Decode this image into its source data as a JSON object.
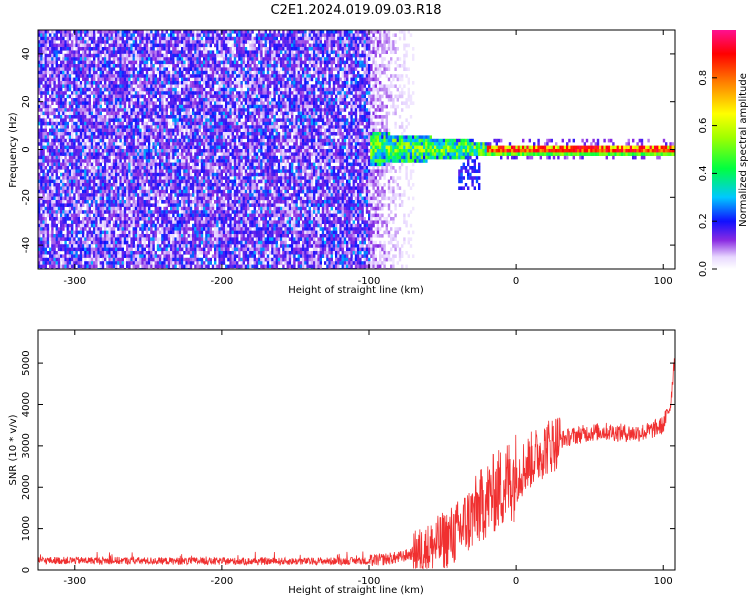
{
  "title": "C2E1.2024.019.09.03.R18",
  "chart_data": [
    {
      "type": "heatmap",
      "xlabel": "Height of straight line (km)",
      "ylabel": "Frequency (Hz)",
      "xlim": [
        -325,
        108
      ],
      "ylim": [
        -50,
        50
      ],
      "xticks": [
        -300,
        -200,
        -100,
        0,
        100
      ],
      "yticks": [
        -40,
        -20,
        0,
        20,
        40
      ],
      "colorbar": {
        "label": "Normalized spectral amplitude",
        "range": [
          0.0,
          1.0
        ],
        "ticks": [
          "0.0",
          "0.2",
          "0.4",
          "0.6",
          "0.8"
        ],
        "tick_values": [
          0.0,
          0.2,
          0.4,
          0.6,
          0.8
        ]
      },
      "description_regions": [
        {
          "x_range": [
            -325,
            -100
          ],
          "y_range": [
            -50,
            50
          ],
          "amplitude": [
            0.05,
            0.3
          ],
          "pattern": "broadband noise"
        },
        {
          "x_range": [
            -100,
            -70
          ],
          "y_range": [
            -50,
            50
          ],
          "amplitude": [
            0.0,
            0.15
          ],
          "pattern": "fading noise"
        },
        {
          "x_range": [
            -100,
            -20
          ],
          "y_range": [
            -8,
            8
          ],
          "amplitude": [
            0.2,
            0.6
          ],
          "pattern": "emerging signal"
        },
        {
          "x_range": [
            -20,
            108
          ],
          "y_range": [
            -1.5,
            3
          ],
          "amplitude": [
            0.5,
            1.0
          ],
          "pattern": "narrow line near 0 Hz"
        }
      ]
    },
    {
      "type": "line",
      "xlabel": "Height of straight line (km)",
      "ylabel": "SNR (10 * v/v)",
      "xlim": [
        -325,
        108
      ],
      "ylim": [
        0,
        5800
      ],
      "xticks": [
        -300,
        -200,
        -100,
        0,
        100
      ],
      "yticks": [
        0,
        1000,
        2000,
        3000,
        4000,
        5000
      ],
      "color": "#f03030",
      "x": [
        -325,
        -300,
        -250,
        -200,
        -150,
        -100,
        -80,
        -60,
        -40,
        -30,
        -20,
        -10,
        0,
        10,
        20,
        30,
        40,
        50,
        60,
        70,
        80,
        90,
        100,
        105,
        108
      ],
      "y": [
        230,
        230,
        220,
        210,
        210,
        220,
        300,
        500,
        900,
        1300,
        1700,
        2000,
        2300,
        2650,
        2950,
        3150,
        3250,
        3320,
        3350,
        3320,
        3300,
        3350,
        3500,
        4000,
        5300
      ]
    }
  ]
}
